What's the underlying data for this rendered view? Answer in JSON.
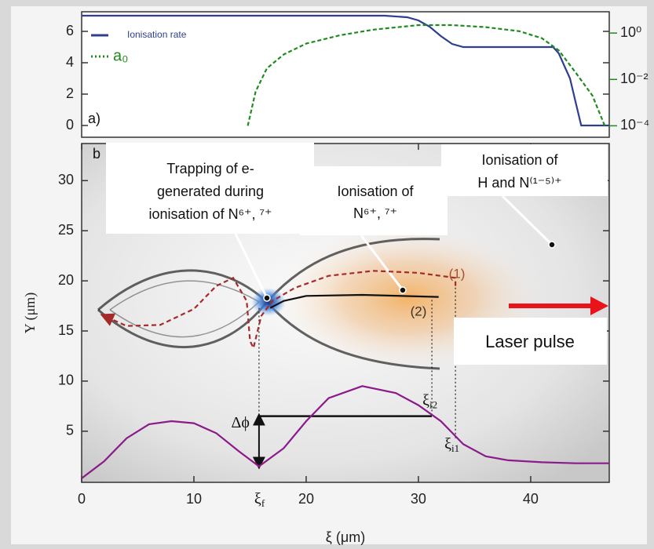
{
  "chart_data": [
    {
      "type": "line",
      "panel_label": "a)",
      "xlim": [
        0,
        47
      ],
      "ylim": [
        -0.75,
        7.25
      ],
      "yticks": [
        0,
        2,
        4,
        6
      ],
      "y2lim": [
        3.2e-05,
        8.3
      ],
      "y2scale": "log",
      "y2ticks": [
        {
          "value": 0.0001,
          "label": "10⁻⁴"
        },
        {
          "value": 0.01,
          "label": "10⁻²"
        },
        {
          "value": 1,
          "label": "10⁰"
        }
      ],
      "legend": "upper left",
      "series": [
        {
          "name": "Ionisation rate",
          "color": "#2e3f8f",
          "x": [
            0,
            27,
            29,
            30,
            31,
            32,
            33,
            34,
            42,
            42.5,
            43,
            43.5,
            44,
            44.5,
            47
          ],
          "values": [
            7,
            7,
            6.9,
            6.7,
            6.3,
            5.7,
            5.2,
            5,
            5,
            4.6,
            3.8,
            3,
            1.5,
            0,
            0
          ]
        },
        {
          "name": "a₀",
          "color": "#1e8c1e",
          "axis": "y2",
          "dash": true,
          "x": [
            14.8,
            15.5,
            16.5,
            18,
            20,
            23,
            26,
            30,
            33,
            36,
            39,
            41,
            42.5,
            44,
            45.5,
            46.6
          ],
          "values": [
            0.0001,
            0.003,
            0.03,
            0.12,
            0.35,
            0.8,
            1.4,
            2.2,
            2.2,
            1.8,
            1.2,
            0.6,
            0.18,
            0.02,
            0.002,
            0.0001
          ]
        }
      ]
    },
    {
      "type": "line",
      "panel_label": "b",
      "xlabel": "ξ (μm)",
      "ylabel": "Y (μm)",
      "xlim": [
        0,
        47
      ],
      "ylim": [
        -0.1,
        33.7
      ],
      "xticks": [
        0,
        10,
        20,
        30,
        40
      ],
      "yticks": [
        5,
        10,
        15,
        20,
        25,
        30
      ],
      "series": [
        {
          "color": "#8b1a8b",
          "x": [
            0,
            2,
            4,
            6,
            8,
            10,
            12,
            14,
            15.8,
            18,
            20,
            22,
            25,
            28,
            30,
            32,
            34,
            36,
            38,
            41,
            44,
            47
          ],
          "values": [
            0.3,
            2,
            4.3,
            5.7,
            6,
            5.8,
            4.8,
            3,
            1.5,
            3.3,
            6,
            8.3,
            9.5,
            8.8,
            7.6,
            6,
            3.7,
            2.5,
            2.1,
            1.9,
            1.8,
            1.8
          ]
        },
        {
          "color": "#a52a2a",
          "dash": true,
          "x": [
            2.2,
            4,
            7,
            10,
            12,
            13.5,
            14.7,
            15,
            15.3,
            16,
            17,
            19,
            22,
            26,
            30,
            33.3,
            33.3
          ],
          "values": [
            16.4,
            15.5,
            15.6,
            17.2,
            19.5,
            20.3,
            18,
            14,
            13.3,
            16.5,
            18,
            19.3,
            20.5,
            21,
            20.8,
            20.3,
            19.5
          ]
        },
        {
          "color": "#111111",
          "x": [
            16.8,
            18,
            20,
            25,
            31.8
          ],
          "values": [
            17.3,
            18,
            18.5,
            18.6,
            18.4
          ]
        }
      ],
      "guides": [
        {
          "x": 15.8,
          "y": [
            1.5,
            17.3
          ]
        },
        {
          "x": 31.2,
          "y": [
            6.6,
            18.4
          ]
        },
        {
          "x": 33.3,
          "y": [
            4.3,
            19.8
          ]
        }
      ],
      "span": {
        "y": 6.5,
        "x": [
          15.8,
          31.2
        ]
      },
      "delta_phi": {
        "x": 15.8,
        "y": [
          1.5,
          6.5
        ]
      },
      "labels": {
        "xi_f": {
          "text": "ξ",
          "sub": "f"
        },
        "xi_i2": {
          "text": "ξ",
          "sub": "i2"
        },
        "xi_i1": {
          "text": "ξ",
          "sub": "i1"
        },
        "delta_phi": "Δϕ",
        "traj1": "(1)",
        "traj2": "(2)"
      },
      "annotations": [
        {
          "lines": [
            "Trapping of e-",
            "generated during",
            "ionisation of  N⁶⁺, ⁷⁺"
          ]
        },
        {
          "lines": [
            "Ionisation of",
            "N⁶⁺, ⁷⁺"
          ]
        },
        {
          "lines": [
            "Ionisation of",
            "H and  N⁽¹⁻⁵⁾⁺"
          ]
        },
        {
          "lines": [
            "Laser pulse"
          ]
        }
      ]
    }
  ]
}
